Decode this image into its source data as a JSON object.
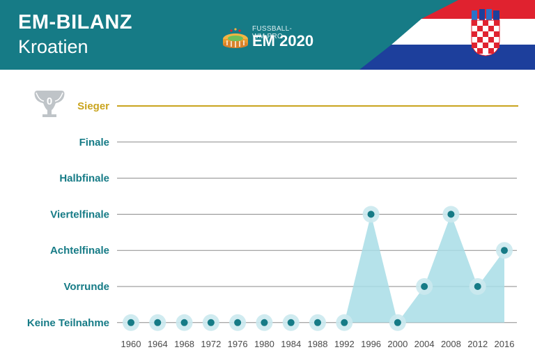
{
  "header": {
    "title": "EM-BILANZ",
    "subtitle": "Kroatien",
    "logo_site": "FUSSBALL-WM.PRO",
    "logo_event": "EM 2020"
  },
  "trophy": {
    "count": "0"
  },
  "colors": {
    "header_bg": "#167b86",
    "accent": "#167b86",
    "winner_line": "#c9a41e",
    "area_fill": "#a8dde6",
    "halo": "#cbe9ee",
    "flag_red": "#e0222f",
    "flag_white": "#ffffff",
    "flag_blue": "#1d3f9c"
  },
  "chart_data": {
    "type": "area",
    "title": "",
    "xlabel": "",
    "ylabel": "",
    "levels": [
      "Keine Teilnahme",
      "Vorrunde",
      "Achtelfinale",
      "Viertelfinale",
      "Halbfinale",
      "Finale",
      "Sieger"
    ],
    "x": [
      "1960",
      "1964",
      "1968",
      "1972",
      "1976",
      "1980",
      "1984",
      "1988",
      "1992",
      "1996",
      "2000",
      "2004",
      "2008",
      "2012",
      "2016"
    ],
    "values": [
      "Keine Teilnahme",
      "Keine Teilnahme",
      "Keine Teilnahme",
      "Keine Teilnahme",
      "Keine Teilnahme",
      "Keine Teilnahme",
      "Keine Teilnahme",
      "Keine Teilnahme",
      "Keine Teilnahme",
      "Viertelfinale",
      "Keine Teilnahme",
      "Vorrunde",
      "Viertelfinale",
      "Vorrunde",
      "Achtelfinale"
    ],
    "grid": true,
    "legend": "none"
  }
}
